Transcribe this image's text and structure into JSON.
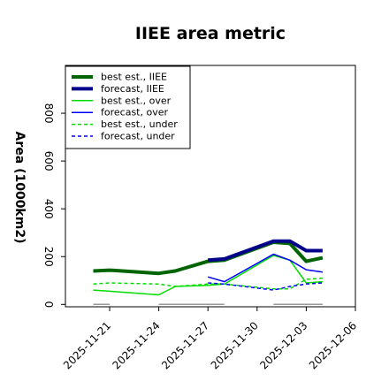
{
  "chart_data": {
    "type": "line",
    "title": "IIEE area metric",
    "ylabel": "Area (1000km2)",
    "xlabel": "",
    "ylim": [
      -10,
      1000
    ],
    "yticks": [
      0,
      200,
      400,
      600,
      800
    ],
    "x_ticks": [
      {
        "label": "2025-11-21",
        "day": 0,
        "color": "#000000"
      },
      {
        "label": "2025-11-24",
        "day": 3,
        "color": "#000000"
      },
      {
        "label": "2025-11-27",
        "day": 6,
        "color": "#2e8b2e"
      },
      {
        "label": "2025-11-30",
        "day": 9,
        "color": "#000000"
      },
      {
        "label": "2025-12-03",
        "day": 12,
        "color": "#000000"
      },
      {
        "label": "2025-12-06",
        "day": 15,
        "color": "#000000"
      }
    ],
    "xlim_days": [
      -2.7,
      15
    ],
    "grid": false,
    "legend_placement": "upper-left",
    "series": [
      {
        "name": "best est., IIEE",
        "color": "#006400",
        "dash": "solid",
        "width": 4,
        "x": [
          -1,
          0,
          3,
          4,
          6,
          7,
          10,
          11,
          12,
          13
        ],
        "y": [
          140,
          143,
          130,
          140,
          180,
          185,
          260,
          255,
          180,
          195
        ]
      },
      {
        "name": "forecast, IIEE",
        "color": "#00008b",
        "dash": "solid",
        "width": 4,
        "x": [
          6,
          7,
          10,
          11,
          12,
          13
        ],
        "y": [
          185,
          190,
          265,
          265,
          225,
          225
        ]
      },
      {
        "name": "best est., over",
        "color": "#00dd00",
        "dash": "solid",
        "width": 1.5,
        "x": [
          -1,
          0,
          3,
          4,
          6,
          7,
          10,
          11,
          12,
          13
        ],
        "y": [
          60,
          55,
          40,
          75,
          80,
          85,
          205,
          185,
          90,
          95
        ]
      },
      {
        "name": "forecast, over",
        "color": "#0000ff",
        "dash": "solid",
        "width": 1.5,
        "x": [
          6,
          7,
          10,
          11,
          12,
          13
        ],
        "y": [
          115,
          95,
          210,
          185,
          145,
          135
        ]
      },
      {
        "name": "best est., under",
        "color": "#00dd00",
        "dash": "dashed",
        "width": 1.5,
        "x": [
          -1,
          0,
          3,
          4,
          6,
          7,
          10,
          11,
          12,
          13
        ],
        "y": [
          85,
          90,
          85,
          75,
          85,
          85,
          65,
          65,
          105,
          110
        ]
      },
      {
        "name": "forecast, under",
        "color": "#0000ff",
        "dash": "dashed",
        "width": 1.5,
        "x": [
          6,
          7,
          10,
          11,
          12,
          13
        ],
        "y": [
          90,
          85,
          60,
          75,
          85,
          90
        ]
      }
    ],
    "x_ranges": [
      {
        "from": -1,
        "to": 0
      },
      {
        "from": 3,
        "to": 7
      },
      {
        "from": 10,
        "to": 13
      }
    ]
  }
}
